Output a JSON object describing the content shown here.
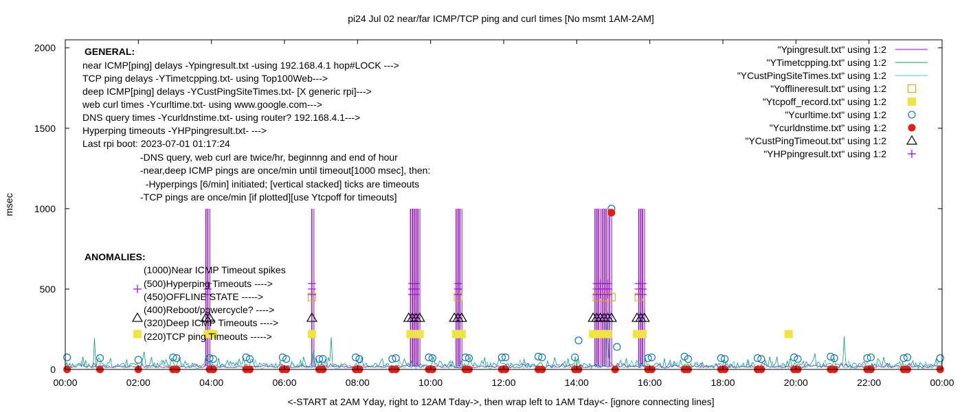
{
  "chart_data": {
    "type": "line",
    "title": "pi24 Jul 02  near/far ICMP/TCP ping and curl times [No msmt 1AM-2AM]",
    "xlabel": "<-START at 2AM Yday, right to 12AM Tday->, then wrap left to 1AM Tday<- [ignore connecting lines]",
    "ylabel": "msec",
    "xlim": [
      0,
      24
    ],
    "ylim": [
      0,
      2050
    ],
    "x_ticks": [
      "00:00",
      "02:00",
      "04:00",
      "06:00",
      "08:00",
      "10:00",
      "12:00",
      "14:00",
      "16:00",
      "18:00",
      "20:00",
      "22:00",
      "00:00"
    ],
    "x_tick_values": [
      0,
      2,
      4,
      6,
      8,
      10,
      12,
      14,
      16,
      18,
      20,
      22,
      24
    ],
    "y_ticks": [
      "0",
      "500",
      "1000",
      "1500",
      "2000"
    ],
    "y_tick_values": [
      0,
      500,
      1000,
      1500,
      2000
    ],
    "grid": false,
    "legend_position": "top-right",
    "legend": [
      {
        "label": "\"Ypingresult.txt\" using 1:2",
        "color": "#9400d3",
        "style": "line"
      },
      {
        "label": "\"YTimetcpping.txt\" using 1:2",
        "color": "#009e73",
        "style": "line"
      },
      {
        "label": "\"YCustPingSiteTimes.txt\" using 1:2",
        "color": "#56b4e9",
        "style": "line"
      },
      {
        "label": "\"Yofflineresult.txt\" using 1:2",
        "color": "#e69f00",
        "style": "open-square"
      },
      {
        "label": "\"Ytcpoff_record.txt\" using 1:2",
        "color": "#f0e442",
        "style": "filled-square"
      },
      {
        "label": "\"Ycurltime.txt\" using 1:2",
        "color": "#0072b2",
        "style": "open-circle"
      },
      {
        "label": "\"Ycurldnstime.txt\" using 1:2",
        "color": "#e51e10",
        "style": "filled-circle"
      },
      {
        "label": "\"YCustPingTimeout.txt\" using 1:2",
        "color": "#000000",
        "style": "open-triangle"
      },
      {
        "label": "\"YHPpingresult.txt\" using 1:2",
        "color": "#9400d3",
        "style": "plus"
      }
    ],
    "annotations": {
      "general_header": "GENERAL:",
      "general_lines": [
        "near ICMP[ping] delays -Ypingresult.txt -using 192.168.4.1 hop#LOCK --->",
        "TCP ping delays -YTimetcpping.txt- using Top100Web--->",
        "deep ICMP[ping] delays -YCustPingSiteTimes.txt- [X generic rpi]--->",
        "web curl times -Ycurltime.txt- using www.google.com--->",
        "DNS query times -Ycurldnstime.txt- using router? 192.168.4.1--->",
        "Hyperping timeouts -YHPpingresult.txt- --->",
        "Last rpi boot: 2023-07-01 01:17:24"
      ],
      "notes": [
        "-DNS query, web curl are twice/hr, beginnng and end of hour",
        "-near,deep ICMP pings are once/min until timeout[1000 msec], then:",
        "  -Hyperpings [6/min] initiated; [vertical stacked] ticks are timeouts",
        "-TCP pings are once/min [if plotted][use Ytcpoff for timeouts]"
      ],
      "anomalies_header": "ANOMALIES:",
      "anomalies": [
        "(1000)Near ICMP Timeout spikes",
        "(500)Hyperping Timeouts ---->",
        "(450)OFFLINE STATE ----->",
        "(400)Reboot/powercycle? ---->",
        "(320)Deep ICMP Timeouts ---->",
        "(220)TCP ping Timeouts ----->"
      ]
    },
    "anomaly_key_markers": [
      {
        "y": 500,
        "style": "plus",
        "color": "#9400d3"
      },
      {
        "y": 320,
        "style": "open-triangle",
        "color": "#000000"
      },
      {
        "y": 220,
        "style": "filled-square",
        "color": "#f0e442"
      }
    ],
    "series": [
      {
        "name": "\"Ypingresult.txt\" using 1:2",
        "timeout_spikes_at_1000": [
          3.85,
          3.9,
          6.75,
          9.45,
          9.5,
          9.55,
          9.6,
          9.65,
          10.7,
          10.75,
          10.8,
          14.5,
          14.55,
          14.6,
          14.7,
          14.75,
          14.8,
          14.9,
          15.7,
          15.75,
          15.8
        ],
        "baseline_range": [
          10,
          40
        ]
      },
      {
        "name": "\"YTimetcpping.txt\" using 1:2",
        "spikes": [
          {
            "x": 0.8,
            "y": 195
          },
          {
            "x": 2.15,
            "y": 110
          },
          {
            "x": 6.8,
            "y": 120
          },
          {
            "x": 7.3,
            "y": 200
          },
          {
            "x": 14.85,
            "y": 300
          },
          {
            "x": 20.5,
            "y": 100
          },
          {
            "x": 21.3,
            "y": 205
          }
        ],
        "baseline_range": [
          10,
          80
        ]
      },
      {
        "name": "\"YCustPingSiteTimes.txt\" using 1:2",
        "baseline_range": [
          5,
          60
        ]
      },
      {
        "name": "\"Yofflineresult.txt\" using 1:2",
        "points": [
          {
            "x": 6.75,
            "y": 450
          },
          {
            "x": 10.75,
            "y": 450
          },
          {
            "x": 14.55,
            "y": 450
          },
          {
            "x": 14.75,
            "y": 450
          },
          {
            "x": 14.95,
            "y": 450
          },
          {
            "x": 15.7,
            "y": 450
          }
        ]
      },
      {
        "name": "\"Ytcpoff_record.txt\" using 1:2",
        "points": [
          {
            "x": 3.9,
            "y": 220
          },
          {
            "x": 4.05,
            "y": 220
          },
          {
            "x": 6.75,
            "y": 220
          },
          {
            "x": 9.45,
            "y": 220
          },
          {
            "x": 9.7,
            "y": 220
          },
          {
            "x": 10.7,
            "y": 220
          },
          {
            "x": 10.85,
            "y": 220
          },
          {
            "x": 14.45,
            "y": 220
          },
          {
            "x": 14.65,
            "y": 220
          },
          {
            "x": 14.85,
            "y": 220
          },
          {
            "x": 15.65,
            "y": 220
          },
          {
            "x": 15.8,
            "y": 220
          },
          {
            "x": 19.8,
            "y": 220
          }
        ]
      },
      {
        "name": "\"Ycurltime.txt\" using 1:2",
        "points": [
          {
            "x": 0.05,
            "y": 75
          },
          {
            "x": 0.95,
            "y": 70
          },
          {
            "x": 2.0,
            "y": 60
          },
          {
            "x": 2.95,
            "y": 75
          },
          {
            "x": 3.05,
            "y": 70
          },
          {
            "x": 3.95,
            "y": 70
          },
          {
            "x": 4.05,
            "y": 65
          },
          {
            "x": 4.95,
            "y": 75
          },
          {
            "x": 5.05,
            "y": 65
          },
          {
            "x": 5.95,
            "y": 75
          },
          {
            "x": 6.05,
            "y": 65
          },
          {
            "x": 6.95,
            "y": 65
          },
          {
            "x": 7.05,
            "y": 65
          },
          {
            "x": 7.95,
            "y": 75
          },
          {
            "x": 8.05,
            "y": 65
          },
          {
            "x": 8.95,
            "y": 65
          },
          {
            "x": 9.05,
            "y": 70
          },
          {
            "x": 9.95,
            "y": 75
          },
          {
            "x": 10.05,
            "y": 70
          },
          {
            "x": 10.95,
            "y": 75
          },
          {
            "x": 11.05,
            "y": 70
          },
          {
            "x": 11.95,
            "y": 75
          },
          {
            "x": 12.05,
            "y": 75
          },
          {
            "x": 12.95,
            "y": 80
          },
          {
            "x": 13.05,
            "y": 75
          },
          {
            "x": 13.95,
            "y": 75
          },
          {
            "x": 14.05,
            "y": 180
          },
          {
            "x": 14.95,
            "y": 1000
          },
          {
            "x": 15.1,
            "y": 140
          },
          {
            "x": 15.95,
            "y": 70
          },
          {
            "x": 16.05,
            "y": 75
          },
          {
            "x": 16.95,
            "y": 80
          },
          {
            "x": 17.05,
            "y": 65
          },
          {
            "x": 17.95,
            "y": 70
          },
          {
            "x": 18.05,
            "y": 65
          },
          {
            "x": 18.95,
            "y": 70
          },
          {
            "x": 19.05,
            "y": 65
          },
          {
            "x": 19.95,
            "y": 75
          },
          {
            "x": 20.05,
            "y": 65
          },
          {
            "x": 20.95,
            "y": 80
          },
          {
            "x": 21.05,
            "y": 70
          },
          {
            "x": 21.95,
            "y": 70
          },
          {
            "x": 22.05,
            "y": 75
          },
          {
            "x": 22.95,
            "y": 70
          },
          {
            "x": 23.05,
            "y": 75
          },
          {
            "x": 23.95,
            "y": 70
          }
        ]
      },
      {
        "name": "\"Ycurldnstime.txt\" using 1:2",
        "points": [
          {
            "x": 0.05,
            "y": 0
          },
          {
            "x": 0.95,
            "y": 0
          },
          {
            "x": 2.0,
            "y": 0
          },
          {
            "x": 2.95,
            "y": 0
          },
          {
            "x": 3.05,
            "y": 0
          },
          {
            "x": 3.95,
            "y": 0
          },
          {
            "x": 4.05,
            "y": 0
          },
          {
            "x": 4.95,
            "y": 0
          },
          {
            "x": 5.05,
            "y": 0
          },
          {
            "x": 5.95,
            "y": 0
          },
          {
            "x": 6.05,
            "y": 0
          },
          {
            "x": 6.95,
            "y": 0
          },
          {
            "x": 7.05,
            "y": 0
          },
          {
            "x": 7.95,
            "y": 0
          },
          {
            "x": 8.05,
            "y": 0
          },
          {
            "x": 8.95,
            "y": 0
          },
          {
            "x": 9.05,
            "y": 0
          },
          {
            "x": 9.95,
            "y": 0
          },
          {
            "x": 10.05,
            "y": 0
          },
          {
            "x": 10.95,
            "y": 0
          },
          {
            "x": 11.05,
            "y": 0
          },
          {
            "x": 11.95,
            "y": 0
          },
          {
            "x": 12.05,
            "y": 0
          },
          {
            "x": 12.95,
            "y": 0
          },
          {
            "x": 13.05,
            "y": 0
          },
          {
            "x": 13.95,
            "y": 0
          },
          {
            "x": 14.05,
            "y": 0
          },
          {
            "x": 14.95,
            "y": 975
          },
          {
            "x": 15.05,
            "y": 0
          },
          {
            "x": 15.95,
            "y": 0
          },
          {
            "x": 16.05,
            "y": 0
          },
          {
            "x": 16.95,
            "y": 0
          },
          {
            "x": 17.05,
            "y": 0
          },
          {
            "x": 17.95,
            "y": 0
          },
          {
            "x": 18.05,
            "y": 0
          },
          {
            "x": 18.95,
            "y": 0
          },
          {
            "x": 19.05,
            "y": 0
          },
          {
            "x": 19.95,
            "y": 0
          },
          {
            "x": 20.05,
            "y": 0
          },
          {
            "x": 20.95,
            "y": 0
          },
          {
            "x": 21.05,
            "y": 0
          },
          {
            "x": 21.95,
            "y": 0
          },
          {
            "x": 22.05,
            "y": 0
          },
          {
            "x": 22.95,
            "y": 0
          },
          {
            "x": 23.05,
            "y": 0
          },
          {
            "x": 23.95,
            "y": 0
          }
        ]
      },
      {
        "name": "\"YCustPingTimeout.txt\" using 1:2",
        "points": [
          {
            "x": 3.85,
            "y": 320
          },
          {
            "x": 3.95,
            "y": 320
          },
          {
            "x": 6.75,
            "y": 320
          },
          {
            "x": 9.4,
            "y": 320
          },
          {
            "x": 9.5,
            "y": 320
          },
          {
            "x": 9.6,
            "y": 320
          },
          {
            "x": 9.7,
            "y": 320
          },
          {
            "x": 10.65,
            "y": 320
          },
          {
            "x": 10.75,
            "y": 320
          },
          {
            "x": 10.85,
            "y": 320
          },
          {
            "x": 14.45,
            "y": 320
          },
          {
            "x": 14.55,
            "y": 320
          },
          {
            "x": 14.65,
            "y": 320
          },
          {
            "x": 14.75,
            "y": 320
          },
          {
            "x": 14.85,
            "y": 320
          },
          {
            "x": 14.95,
            "y": 320
          },
          {
            "x": 15.65,
            "y": 320
          },
          {
            "x": 15.75,
            "y": 320
          },
          {
            "x": 15.85,
            "y": 320
          }
        ]
      },
      {
        "name": "\"YHPpingresult.txt\" using 1:2",
        "points": [
          {
            "x": 3.9,
            "y": 500
          },
          {
            "x": 6.75,
            "y": 500
          },
          {
            "x": 9.5,
            "y": 500
          },
          {
            "x": 9.6,
            "y": 500
          },
          {
            "x": 10.75,
            "y": 500
          },
          {
            "x": 14.55,
            "y": 500
          },
          {
            "x": 14.65,
            "y": 500
          },
          {
            "x": 14.75,
            "y": 500
          },
          {
            "x": 14.85,
            "y": 500
          },
          {
            "x": 15.7,
            "y": 500
          },
          {
            "x": 15.8,
            "y": 500
          }
        ]
      }
    ]
  }
}
